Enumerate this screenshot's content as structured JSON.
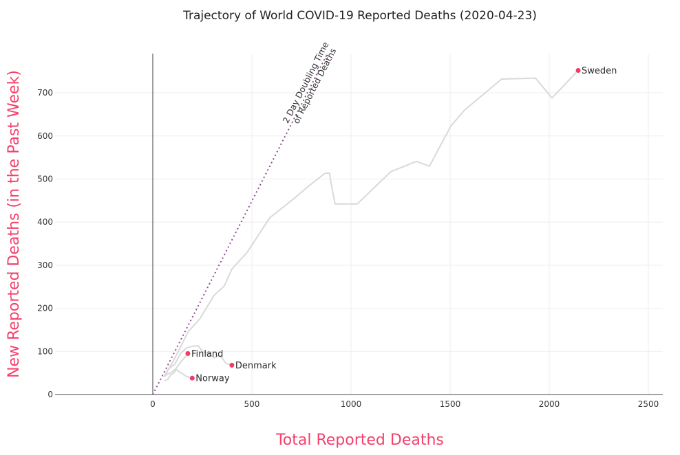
{
  "chart_data": {
    "type": "line",
    "title": "Trajectory of World COVID-19 Reported Deaths (2020-04-23)",
    "xlabel": "Total Reported Deaths",
    "ylabel": "New Reported Deaths (in the Past Week)",
    "xlim": [
      -493,
      2573
    ],
    "ylim": [
      0,
      791
    ],
    "x_ticks": [
      0,
      500,
      1000,
      1500,
      2000,
      2500
    ],
    "x_tick_labels": [
      "0",
      "500",
      "1000",
      "1500",
      "2000",
      "2500"
    ],
    "y_ticks": [
      0,
      100,
      200,
      300,
      400,
      500,
      600,
      700
    ],
    "y_tick_labels": [
      "0",
      "100",
      "200",
      "300",
      "400",
      "500",
      "600",
      "700"
    ],
    "grid": true,
    "colors": {
      "axis_title": "#f4416c",
      "marker": "#f23a68",
      "trajectory": "#d9d9d9",
      "reference_line": "#8e4d8f",
      "grid": "#eeeeee",
      "zero_line": "#444444"
    },
    "reference_line": {
      "name": "2 Day Doubling Time of Reported Deaths",
      "label_line1": "2 Day Doubling Time",
      "label_line2": "of Reported Deaths",
      "x": [
        0,
        880
      ],
      "y": [
        0,
        790
      ]
    },
    "series": [
      {
        "name": "Sweden",
        "x": [
          55,
          75,
          100,
          140,
          177,
          236,
          309,
          361,
          399,
          476,
          590,
          700,
          790,
          868,
          892,
          896,
          920,
          1031,
          1201,
          1330,
          1396,
          1504,
          1573,
          1760,
          1931,
          2014,
          2146
        ],
        "y": [
          40,
          55,
          75,
          110,
          145,
          175,
          230,
          252,
          291,
          330,
          410,
          450,
          485,
          513,
          514,
          499,
          442,
          442,
          517,
          541,
          530,
          623,
          660,
          732,
          734,
          688,
          752
        ]
      },
      {
        "name": "Denmark",
        "x": [
          60,
          80,
          110,
          140,
          170,
          200,
          230,
          250,
          280,
          310,
          330,
          350,
          370,
          399
        ],
        "y": [
          45,
          60,
          70,
          95,
          108,
          112,
          113,
          100,
          95,
          85,
          90,
          85,
          72,
          68
        ]
      },
      {
        "name": "Norway",
        "x": [
          60,
          75,
          90,
          105,
          120,
          135,
          150,
          160,
          170,
          185,
          199
        ],
        "y": [
          32,
          35,
          45,
          50,
          58,
          52,
          48,
          45,
          42,
          40,
          38
        ]
      },
      {
        "name": "Finland",
        "x": [
          60,
          75,
          90,
          105,
          120,
          135,
          150,
          165,
          177
        ],
        "y": [
          42,
          48,
          50,
          55,
          62,
          72,
          80,
          88,
          95
        ]
      }
    ],
    "end_markers": [
      {
        "name": "Sweden",
        "x": 2146,
        "y": 752
      },
      {
        "name": "Denmark",
        "x": 399,
        "y": 68
      },
      {
        "name": "Norway",
        "x": 199,
        "y": 38
      },
      {
        "name": "Finland",
        "x": 177,
        "y": 95
      }
    ]
  }
}
